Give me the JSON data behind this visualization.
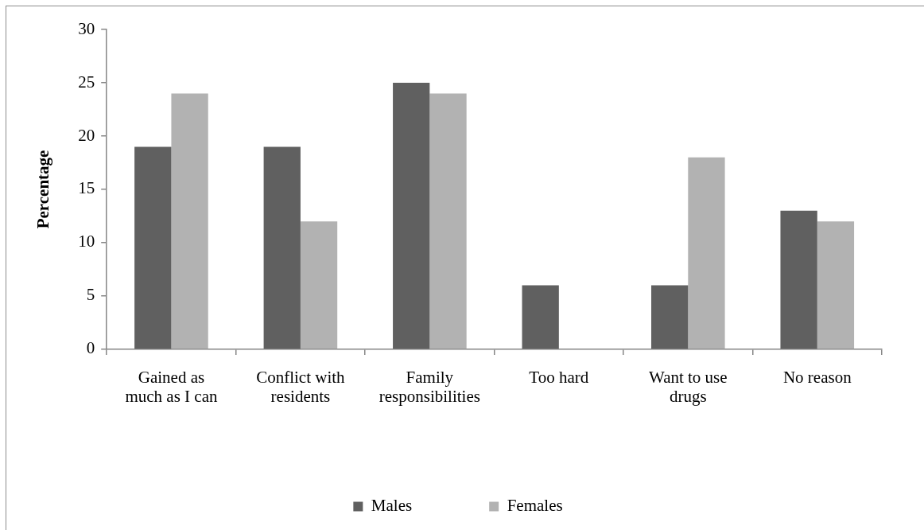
{
  "chart_data": {
    "type": "bar",
    "ylabel": "Percentage",
    "categories": [
      "Gained as much as I can",
      "Conflict with residents",
      "Family responsibilities",
      "Too hard",
      "Want to use drugs",
      "No reason"
    ],
    "series": [
      {
        "name": "Males",
        "color": "#606060",
        "values": [
          19,
          19,
          25,
          6,
          6,
          13
        ]
      },
      {
        "name": "Females",
        "color": "#b2b2b2",
        "values": [
          24,
          12,
          24,
          0,
          18,
          12
        ]
      }
    ],
    "ylim": [
      0,
      30
    ],
    "yticks": [
      0,
      5,
      10,
      15,
      20,
      25,
      30
    ],
    "grid": false,
    "legend": "bottom"
  }
}
